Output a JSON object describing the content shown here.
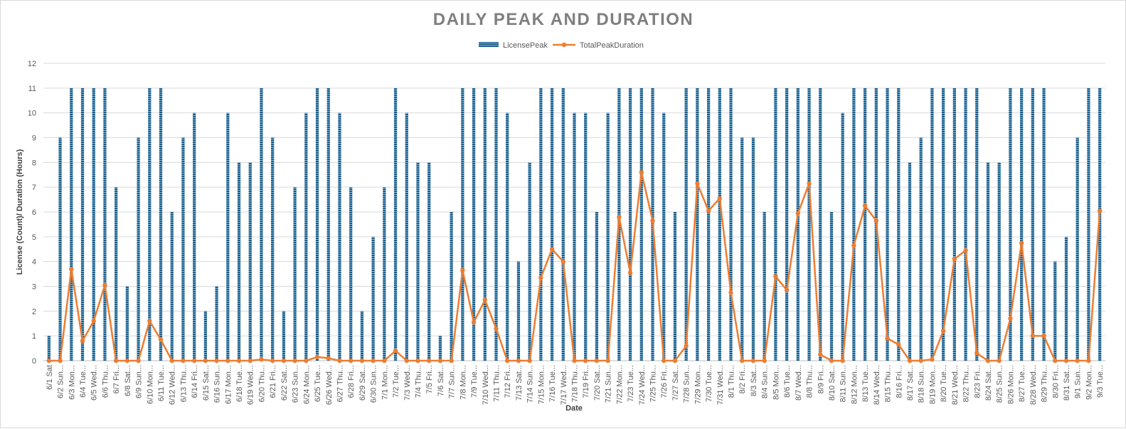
{
  "chart_data": {
    "type": "bar+line",
    "title": "DAILY PEAK AND DURATION",
    "xlabel": "Date",
    "ylabel": "License (Count)/ Duration (Hours)",
    "ylim": [
      0,
      12
    ],
    "yticks": [
      0,
      1,
      2,
      3,
      4,
      5,
      6,
      7,
      8,
      9,
      10,
      11,
      12
    ],
    "grid": true,
    "legend_position": "top-center",
    "categories": [
      "6/1 Sat",
      "6/2 Sun...",
      "6/3 Mon...",
      "6/4 Tue...",
      "6/5 Wed...",
      "6/6 Thu...",
      "6/7 Fri...",
      "6/8 Sat...",
      "6/9 Sun...",
      "6/10 Mon...",
      "6/11 Tue...",
      "6/12 Wed...",
      "6/13 Thu...",
      "6/14 Fri...",
      "6/15 Sat...",
      "6/16 Sun...",
      "6/17 Mon...",
      "6/18 Tue...",
      "6/19 Wed...",
      "6/20 Thu...",
      "6/21 Fri...",
      "6/22 Sat...",
      "6/23 Sun...",
      "6/24 Mon...",
      "6/25 Tue...",
      "6/26 Wed...",
      "6/27 Thu...",
      "6/28 Fri...",
      "6/29 Sat...",
      "6/30 Sun...",
      "7/1 Mon...",
      "7/2 Tue...",
      "7/3 Wed...",
      "7/4 Thu...",
      "7/5 Fri...",
      "7/6 Sat...",
      "7/7 Sun...",
      "7/8 Mon...",
      "7/9 Tue...",
      "7/10 Wed...",
      "7/11 Thu...",
      "7/12 Fri...",
      "7/13 Sat...",
      "7/14 Sun...",
      "7/15 Mon...",
      "7/16 Tue...",
      "7/17 Wed...",
      "7/18 Thu...",
      "7/19 Fri...",
      "7/20 Sat...",
      "7/21 Sun...",
      "7/22 Mon...",
      "7/23 Tue...",
      "7/24 Wed...",
      "7/25 Thu...",
      "7/26 Fri...",
      "7/27 Sat...",
      "7/28 Sun...",
      "7/29 Mon...",
      "7/30 Tue...",
      "7/31 Wed...",
      "8/1 Thu...",
      "8/2 Fri...",
      "8/3 Sat...",
      "8/4 Sun...",
      "8/5 Mon...",
      "8/6 Tue...",
      "8/7 Wed...",
      "8/8 Thu...",
      "8/9 Fri...",
      "8/10 Sat...",
      "8/11 Sun...",
      "8/12 Mon...",
      "8/13 Tue...",
      "8/14 Wed...",
      "8/15 Thu...",
      "8/16 Fri...",
      "8/17 Sat...",
      "8/18 Sun...",
      "8/19 Mon...",
      "8/20 Tue...",
      "8/21 Wed...",
      "8/22 Thu...",
      "8/23 Fri...",
      "8/24 Sat...",
      "8/25 Sun...",
      "8/26 Mon...",
      "8/27 Tue...",
      "8/28 Wed...",
      "8/29 Thu...",
      "8/30 Fri...",
      "8/31 Sat...",
      "9/1 Sun...",
      "9/2 Mon...",
      "9/3 Tue..."
    ],
    "series": [
      {
        "name": "LicensePeak",
        "type": "bar",
        "color": "#1f5f8b",
        "values": [
          1,
          9,
          11,
          11,
          11,
          11,
          7,
          3,
          9,
          11,
          11,
          6,
          9,
          10,
          2,
          3,
          10,
          8,
          8,
          11,
          9,
          2,
          7,
          10,
          11,
          11,
          10,
          7,
          2,
          5,
          7,
          11,
          10,
          8,
          8,
          1,
          6,
          11,
          11,
          11,
          11,
          10,
          4,
          8,
          11,
          11,
          11,
          10,
          10,
          6,
          10,
          11,
          11,
          11,
          11,
          10,
          6,
          11,
          11,
          11,
          11,
          11,
          9,
          9,
          6,
          11,
          11,
          11,
          11,
          11,
          6,
          10,
          11,
          11,
          11,
          11,
          11,
          8,
          9,
          11,
          11,
          11,
          11,
          11,
          8,
          8,
          11,
          11,
          11,
          11,
          4,
          5,
          9,
          11,
          11
        ]
      },
      {
        "name": "TotalPeakDuration",
        "type": "line",
        "color": "#ed7d31",
        "values": [
          0,
          0,
          3.7,
          0.8,
          1.6,
          3.05,
          0,
          0,
          0,
          1.6,
          0.85,
          0,
          0,
          0,
          0,
          0,
          0,
          0,
          0,
          0.05,
          0,
          0,
          0,
          0,
          0.15,
          0.1,
          0,
          0,
          0,
          0,
          0,
          0.4,
          0,
          0,
          0,
          0,
          0,
          3.65,
          1.55,
          2.45,
          1.3,
          0,
          0,
          0,
          3.35,
          4.5,
          4.0,
          0,
          0,
          0,
          0,
          5.8,
          3.55,
          7.6,
          5.65,
          0,
          0,
          0.6,
          7.15,
          6.05,
          6.55,
          2.75,
          0,
          0,
          0,
          3.4,
          2.85,
          5.95,
          7.15,
          0.25,
          0,
          0,
          4.65,
          6.25,
          5.65,
          0.9,
          0.65,
          0,
          0,
          0.05,
          1.2,
          4.1,
          4.45,
          0.3,
          0,
          0,
          1.7,
          4.75,
          1.0,
          1.0,
          0,
          0,
          0,
          0,
          6.05
        ]
      }
    ]
  }
}
